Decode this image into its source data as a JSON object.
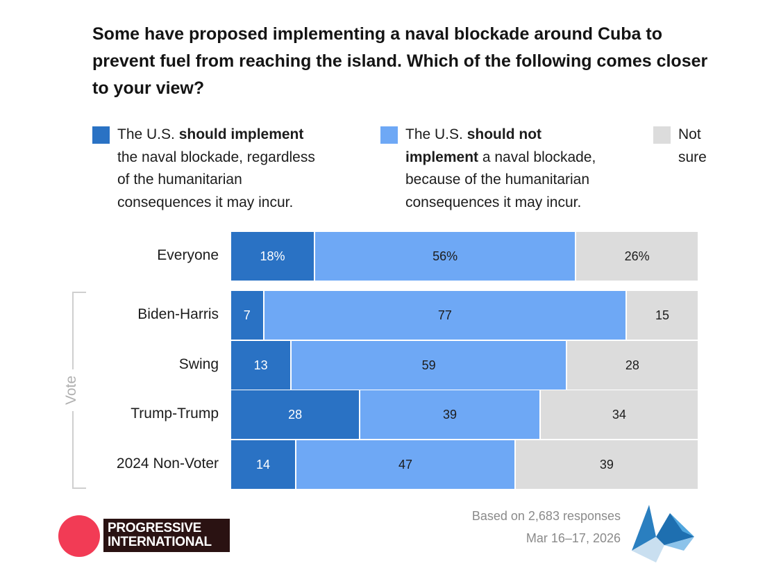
{
  "title": "Some have proposed implementing a naval blockade around Cuba to prevent fuel from reaching the island. Which of the following comes closer to your view?",
  "legend": [
    {
      "color": "#2a72c4",
      "lines": [
        {
          "pre": "The U.S. ",
          "bold": "should implement",
          "post": ""
        },
        {
          "pre": "the naval blockade, regardless",
          "bold": "",
          "post": ""
        },
        {
          "pre": "of the humanitarian",
          "bold": "",
          "post": ""
        },
        {
          "pre": "consequences it may incur.",
          "bold": "",
          "post": ""
        }
      ]
    },
    {
      "color": "#6ea8f5",
      "lines": [
        {
          "pre": "The U.S. ",
          "bold": "should not",
          "post": ""
        },
        {
          "pre": "",
          "bold": "implement",
          "post": " a naval blockade,"
        },
        {
          "pre": "because of the humanitarian",
          "bold": "",
          "post": ""
        },
        {
          "pre": "consequences it may incur.",
          "bold": "",
          "post": ""
        }
      ]
    },
    {
      "color": "#dcdcdc",
      "lines": [
        {
          "pre": "Not",
          "bold": "",
          "post": ""
        },
        {
          "pre": "sure",
          "bold": "",
          "post": ""
        }
      ]
    }
  ],
  "chart_data": {
    "type": "bar",
    "orientation": "horizontal",
    "stacked": true,
    "categories": [
      "Everyone",
      "Biden-Harris",
      "Swing",
      "Trump-Trump",
      "2024 Non-Voter"
    ],
    "series": [
      {
        "name": "The U.S. should implement the naval blockade, regardless of the humanitarian consequences it may incur.",
        "values": [
          18,
          7,
          13,
          28,
          14
        ],
        "color": "#2a72c4"
      },
      {
        "name": "The U.S. should not implement a naval blockade, because of the humanitarian consequences it may incur.",
        "values": [
          56,
          77,
          59,
          39,
          47
        ],
        "color": "#6ea8f5"
      },
      {
        "name": "Not sure",
        "values": [
          26,
          15,
          28,
          34,
          39
        ],
        "color": "#dcdcdc"
      }
    ],
    "value_labels": [
      [
        "18%",
        "56%",
        "26%"
      ],
      [
        "7",
        "77",
        "15"
      ],
      [
        "13",
        "59",
        "28"
      ],
      [
        "28",
        "39",
        "34"
      ],
      [
        "14",
        "47",
        "39"
      ]
    ],
    "group_label": "Vote",
    "xlim": [
      0,
      100
    ]
  },
  "footnote": {
    "responses": "Based on 2,683 responses",
    "dates": "Mar 16–17, 2026"
  },
  "brand": {
    "line1": "PROGRESSIVE",
    "line2": "INTERNATIONAL",
    "circle_color": "#f23b55"
  }
}
